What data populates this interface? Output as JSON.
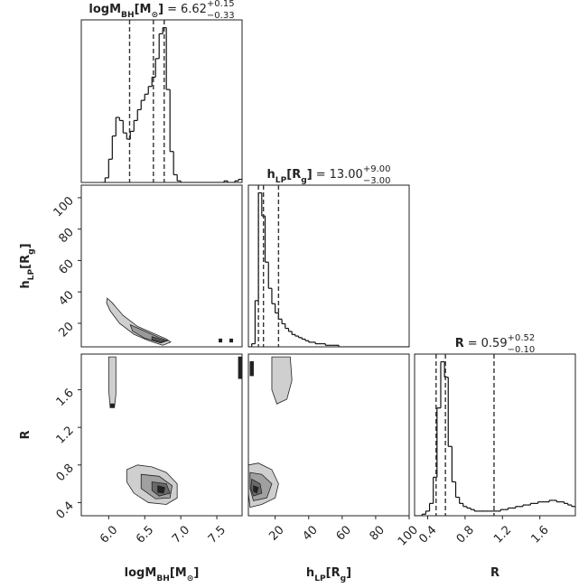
{
  "chart_data": [
    {
      "type": "histogram",
      "title": {
        "label": [
          {
            "text": "logM"
          },
          {
            "text": "BH",
            "sub": true
          },
          {
            "text": "[M"
          },
          {
            "text": "⊙",
            "sub": true
          },
          {
            "text": "]"
          }
        ],
        "eq": "=",
        "median": "6.62",
        "plus": "+0.15",
        "minus": "−0.33"
      },
      "xlim": [
        5.62,
        7.85
      ],
      "ylim": [
        0,
        105
      ],
      "color": "#111111",
      "bins": [
        5.9,
        5.95,
        6.0,
        6.05,
        6.1,
        6.15,
        6.2,
        6.25,
        6.3,
        6.35,
        6.4,
        6.45,
        6.5,
        6.55,
        6.6,
        6.65,
        6.7,
        6.75,
        6.8,
        6.85,
        6.9,
        6.95,
        7.0,
        7.05,
        7.1,
        7.15,
        7.2,
        7.25,
        7.3,
        7.35,
        7.4,
        7.45,
        7.5,
        7.55,
        7.6,
        7.65,
        7.7,
        7.75,
        7.8,
        7.85,
        7.9
      ],
      "counts": [
        0,
        3,
        15,
        30,
        42,
        40,
        32,
        28,
        33,
        40,
        47,
        53,
        57,
        62,
        68,
        80,
        96,
        100,
        60,
        20,
        5,
        1,
        0,
        0,
        0,
        0,
        0,
        0,
        0,
        0,
        0,
        0,
        0,
        0,
        1,
        0,
        0,
        1,
        2,
        1
      ],
      "quantiles": [
        6.29,
        6.62,
        6.77
      ]
    },
    {
      "type": "contour",
      "xlim": [
        5.62,
        7.85
      ],
      "ylim": [
        5,
        108
      ],
      "yticks": [
        20,
        40,
        60,
        80,
        100
      ],
      "ylabel": [
        {
          "text": "h"
        },
        {
          "text": "LP",
          "sub": true
        },
        {
          "text": "[R"
        },
        {
          "text": "g",
          "sub": true
        },
        {
          "text": "]"
        }
      ],
      "contours": [
        {
          "color": "#cfcfcf",
          "x": [
            5.98,
            6.05,
            6.2,
            6.4,
            6.6,
            6.8,
            6.86,
            6.75,
            6.55,
            6.35,
            6.15,
            6.02,
            5.97
          ],
          "y": [
            36,
            33,
            25,
            18,
            14,
            10,
            8,
            6,
            9,
            13,
            20,
            28,
            33
          ]
        },
        {
          "color": "#9a9a9a",
          "x": [
            6.3,
            6.5,
            6.7,
            6.82,
            6.72,
            6.5,
            6.33
          ],
          "y": [
            19,
            15,
            11,
            9,
            7.5,
            10.5,
            15
          ]
        },
        {
          "color": "#5a5a5a",
          "x": [
            6.6,
            6.78,
            6.74,
            6.6
          ],
          "y": [
            11.5,
            9,
            8,
            9.5
          ]
        },
        {
          "color": "#222222",
          "x": [
            7.53,
            7.57,
            7.57,
            7.53
          ],
          "y": [
            10,
            10,
            8,
            8
          ]
        },
        {
          "color": "#222222",
          "x": [
            7.68,
            7.72,
            7.72,
            7.68
          ],
          "y": [
            10,
            10,
            8,
            8
          ]
        }
      ]
    },
    {
      "type": "histogram",
      "title": {
        "label": [
          {
            "text": "h"
          },
          {
            "text": "LP",
            "sub": true
          },
          {
            "text": "[R"
          },
          {
            "text": "g",
            "sub": true
          },
          {
            "text": "]"
          }
        ],
        "eq": "=",
        "median": "13.00",
        "plus": "+9.00",
        "minus": "−3.00"
      },
      "xlim": [
        4,
        100
      ],
      "ylim": [
        0,
        105
      ],
      "color": "#111111",
      "bins": [
        4,
        6,
        8,
        10,
        12,
        14,
        16,
        18,
        20,
        22,
        24,
        26,
        28,
        30,
        32,
        34,
        36,
        38,
        40,
        42,
        44,
        46,
        48,
        50,
        52,
        54,
        56,
        58,
        60,
        62,
        64,
        66,
        68,
        70,
        72,
        74,
        76,
        78,
        80,
        82,
        84,
        86,
        88,
        90,
        92,
        94,
        96,
        98,
        100
      ],
      "counts": [
        0,
        2,
        30,
        100,
        85,
        55,
        38,
        28,
        22,
        18,
        15,
        12,
        10,
        8,
        7,
        6,
        5,
        4,
        3,
        3,
        2,
        2,
        2,
        1,
        1,
        1,
        1,
        0,
        0,
        0,
        0,
        0,
        0,
        0,
        0,
        0,
        0,
        0,
        0,
        0,
        0,
        0,
        0,
        0,
        0,
        0,
        0,
        0
      ],
      "quantiles": [
        10,
        13,
        22
      ]
    },
    {
      "type": "contour",
      "xlim": [
        5.62,
        7.85
      ],
      "ylim": [
        0.26,
        1.98
      ],
      "xticks": [
        {
          "value": 6,
          "label": "6.0"
        },
        6.5,
        {
          "value": 7,
          "label": "7.0"
        },
        7.5
      ],
      "yticks": [
        0.4,
        0.8,
        1.2,
        1.6
      ],
      "xlabel": [
        {
          "text": "logM"
        },
        {
          "text": "BH",
          "sub": true
        },
        {
          "text": "[M"
        },
        {
          "text": "⊙",
          "sub": true
        },
        {
          "text": "]"
        }
      ],
      "ylabel": [
        {
          "text": "R"
        }
      ],
      "contours": [
        {
          "color": "#cfcfcf",
          "x": [
            6.0,
            6.1,
            6.1,
            6.08,
            6.02,
            6.0
          ],
          "y": [
            1.95,
            1.95,
            1.55,
            1.42,
            1.42,
            1.6
          ]
        },
        {
          "color": "#222222",
          "x": [
            6.02,
            6.08,
            6.08,
            6.02
          ],
          "y": [
            1.45,
            1.45,
            1.41,
            1.41
          ]
        },
        {
          "color": "#222222",
          "x": [
            7.8,
            7.85,
            7.85,
            7.8
          ],
          "y": [
            1.95,
            1.95,
            1.72,
            1.72
          ]
        },
        {
          "color": "#cfcfcf",
          "x": [
            6.25,
            6.4,
            6.6,
            6.8,
            6.95,
            6.95,
            6.8,
            6.55,
            6.35,
            6.25
          ],
          "y": [
            0.75,
            0.8,
            0.78,
            0.72,
            0.6,
            0.45,
            0.38,
            0.4,
            0.5,
            0.62
          ]
        },
        {
          "color": "#a0a0a0",
          "x": [
            6.45,
            6.7,
            6.88,
            6.85,
            6.65,
            6.45
          ],
          "y": [
            0.7,
            0.68,
            0.58,
            0.45,
            0.44,
            0.55
          ]
        },
        {
          "color": "#6a6a6a",
          "x": [
            6.6,
            6.8,
            6.85,
            6.7,
            6.6
          ],
          "y": [
            0.62,
            0.6,
            0.5,
            0.47,
            0.53
          ]
        },
        {
          "color": "#222222",
          "x": [
            6.68,
            6.78,
            6.76,
            6.68
          ],
          "y": [
            0.58,
            0.56,
            0.5,
            0.51
          ]
        }
      ]
    },
    {
      "type": "contour",
      "xlim": [
        4,
        100
      ],
      "ylim": [
        0.26,
        1.98
      ],
      "xticks": [
        20,
        40,
        60,
        80,
        100
      ],
      "xlabel": [
        {
          "text": "h"
        },
        {
          "text": "LP",
          "sub": true
        },
        {
          "text": "[R"
        },
        {
          "text": "g",
          "sub": true
        },
        {
          "text": "]"
        }
      ],
      "contours": [
        {
          "color": "#cfcfcf",
          "x": [
            18,
            29,
            30,
            27,
            21,
            18
          ],
          "y": [
            1.95,
            1.95,
            1.7,
            1.5,
            1.45,
            1.6
          ]
        },
        {
          "color": "#222222",
          "x": [
            5,
            7,
            7,
            5
          ],
          "y": [
            1.9,
            1.9,
            1.75,
            1.75
          ]
        },
        {
          "color": "#cfcfcf",
          "x": [
            4,
            10,
            18,
            22,
            20,
            12,
            5,
            4
          ],
          "y": [
            0.8,
            0.82,
            0.75,
            0.6,
            0.45,
            0.38,
            0.35,
            0.5
          ]
        },
        {
          "color": "#a0a0a0",
          "x": [
            5,
            12,
            18,
            15,
            7,
            5
          ],
          "y": [
            0.72,
            0.7,
            0.6,
            0.45,
            0.42,
            0.55
          ]
        },
        {
          "color": "#6a6a6a",
          "x": [
            6,
            11,
            12,
            7,
            5.5
          ],
          "y": [
            0.65,
            0.6,
            0.5,
            0.47,
            0.55
          ]
        },
        {
          "color": "#222222",
          "x": [
            7,
            10,
            9,
            7
          ],
          "y": [
            0.58,
            0.56,
            0.5,
            0.52
          ]
        }
      ]
    },
    {
      "type": "histogram",
      "title": {
        "label": [
          {
            "text": "R"
          }
        ],
        "eq": "=",
        "median": "0.59",
        "plus": "+0.52",
        "minus": "−0.10"
      },
      "xlim": [
        0.26,
        1.98
      ],
      "ylim": [
        0,
        105
      ],
      "color": "#111111",
      "xticks": [
        0.4,
        0.8,
        1.2,
        1.6
      ],
      "xlabel": [
        {
          "text": "R"
        }
      ],
      "bins": [
        0.26,
        0.3,
        0.34,
        0.38,
        0.42,
        0.46,
        0.5,
        0.54,
        0.58,
        0.62,
        0.66,
        0.7,
        0.74,
        0.78,
        0.82,
        0.86,
        0.9,
        0.94,
        0.98,
        1.02,
        1.06,
        1.1,
        1.14,
        1.18,
        1.22,
        1.26,
        1.3,
        1.34,
        1.38,
        1.42,
        1.46,
        1.5,
        1.54,
        1.58,
        1.62,
        1.66,
        1.7,
        1.74,
        1.78,
        1.82,
        1.86,
        1.9,
        1.94,
        1.98
      ],
      "counts": [
        0,
        0,
        1,
        3,
        8,
        25,
        70,
        100,
        90,
        45,
        22,
        12,
        8,
        6,
        5,
        4,
        3,
        3,
        3,
        3,
        3,
        3,
        3,
        4,
        4,
        5,
        5,
        6,
        6,
        7,
        7,
        8,
        8,
        9,
        9,
        9,
        10,
        10,
        9,
        9,
        8,
        7,
        6
      ],
      "quantiles": [
        0.49,
        0.59,
        1.11
      ]
    }
  ]
}
